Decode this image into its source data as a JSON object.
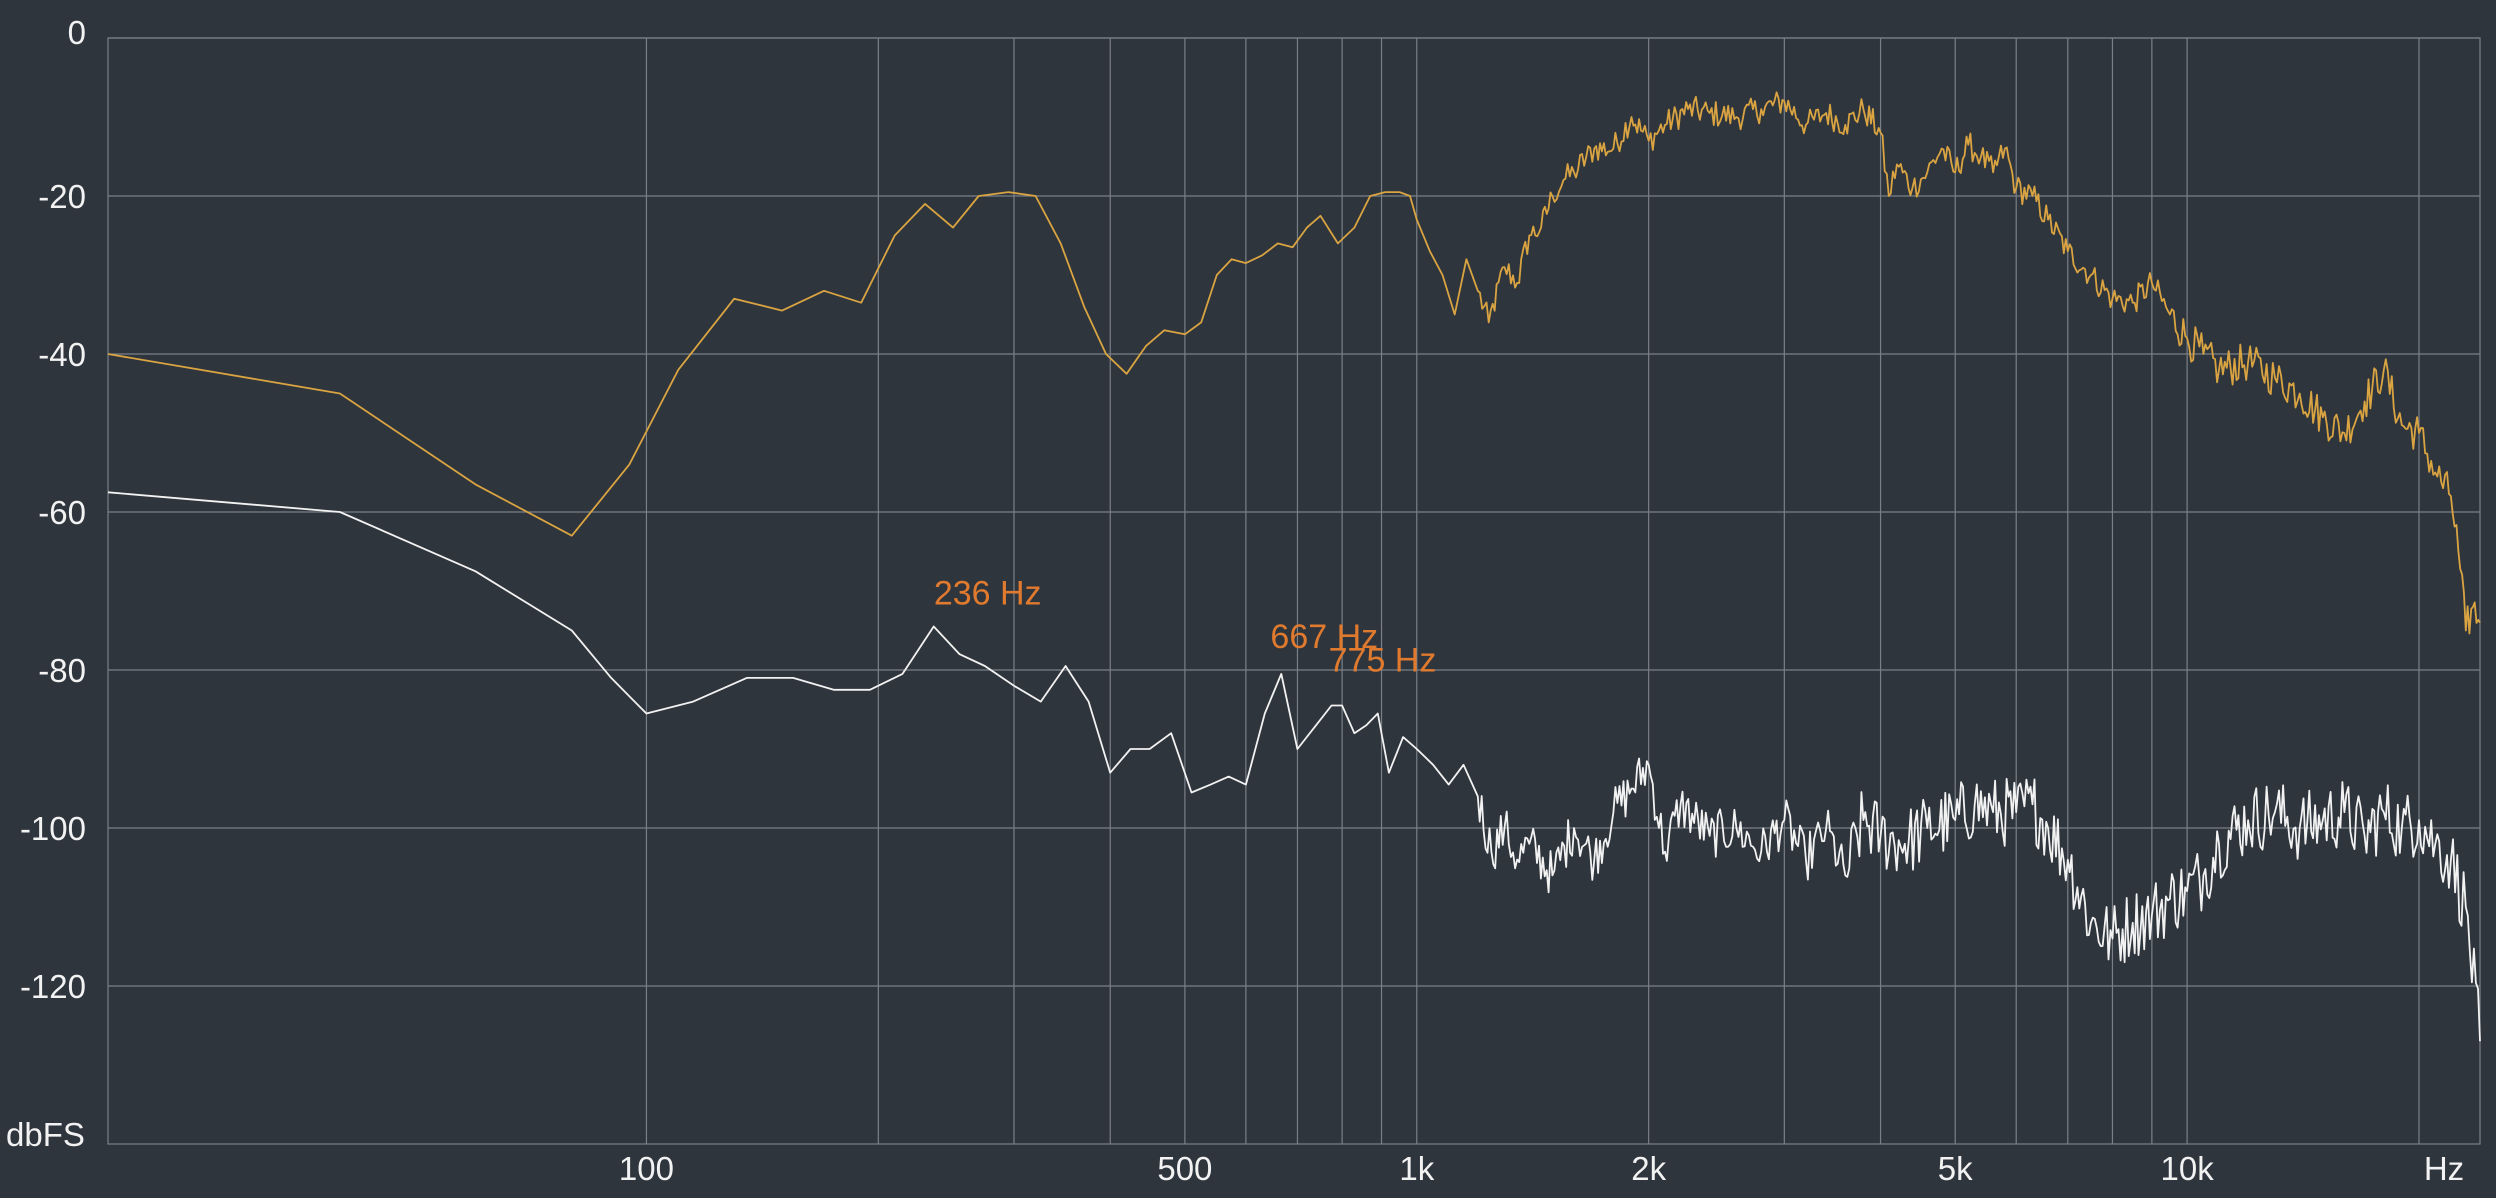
{
  "chart_data": {
    "type": "line",
    "title": "",
    "xlabel": "Hz",
    "ylabel": "dbFS",
    "x_scale": "log",
    "xlim": [
      20,
      24000
    ],
    "ylim": [
      -140,
      0
    ],
    "grid": true,
    "y_ticks": [
      {
        "value": 0,
        "label": "0"
      },
      {
        "value": -20,
        "label": "-20"
      },
      {
        "value": -40,
        "label": "-40"
      },
      {
        "value": -60,
        "label": "-60"
      },
      {
        "value": -80,
        "label": "-80"
      },
      {
        "value": -100,
        "label": "-100"
      },
      {
        "value": -120,
        "label": "-120"
      }
    ],
    "x_ticks": [
      {
        "value": 100,
        "label": "100"
      },
      {
        "value": 500,
        "label": "500"
      },
      {
        "value": 1000,
        "label": "1k"
      },
      {
        "value": 2000,
        "label": "2k"
      },
      {
        "value": 5000,
        "label": "5k"
      },
      {
        "value": 10000,
        "label": "10k"
      }
    ],
    "x_gridlines": [
      100,
      200,
      300,
      400,
      500,
      600,
      700,
      800,
      900,
      1000,
      2000,
      3000,
      4000,
      5000,
      6000,
      7000,
      8000,
      9000,
      10000,
      20000
    ],
    "colors": {
      "background": "#2f353d",
      "grid": "#7a8088",
      "series_1": "#d9a441",
      "series_2": "#f2f2f2",
      "peak_labels": "#e07a2e"
    },
    "series": [
      {
        "color": "#d9a441",
        "points": [
          [
            20,
            -40
          ],
          [
            40,
            -45
          ],
          [
            60,
            -56.5
          ],
          [
            80,
            -63
          ],
          [
            95,
            -54
          ],
          [
            110,
            -42
          ],
          [
            130,
            -33
          ],
          [
            150,
            -34.5
          ],
          [
            170,
            -32
          ],
          [
            190,
            -33.5
          ],
          [
            210,
            -25
          ],
          [
            230,
            -21
          ],
          [
            250,
            -24
          ],
          [
            270,
            -20
          ],
          [
            295,
            -19.5
          ],
          [
            320,
            -20
          ],
          [
            345,
            -26
          ],
          [
            370,
            -34
          ],
          [
            395,
            -40
          ],
          [
            420,
            -42.5
          ],
          [
            445,
            -39
          ],
          [
            470,
            -37
          ],
          [
            500,
            -37.5
          ],
          [
            525,
            -36
          ],
          [
            550,
            -30
          ],
          [
            575,
            -28
          ],
          [
            600,
            -28.5
          ],
          [
            630,
            -27.5
          ],
          [
            660,
            -26
          ],
          [
            690,
            -26.5
          ],
          [
            720,
            -24
          ],
          [
            750,
            -22.5
          ],
          [
            790,
            -26
          ],
          [
            830,
            -24
          ],
          [
            870,
            -20
          ],
          [
            910,
            -19.5
          ],
          [
            950,
            -19.5
          ],
          [
            980,
            -20
          ],
          [
            1000,
            -23
          ],
          [
            1040,
            -27
          ],
          [
            1080,
            -30
          ],
          [
            1120,
            -35
          ],
          [
            1160,
            -28
          ],
          [
            1200,
            -32
          ],
          [
            1240,
            -36
          ],
          [
            1300,
            -29
          ],
          [
            1350,
            -31
          ],
          [
            1400,
            -25
          ],
          [
            1450,
            -24
          ],
          [
            1500,
            -20
          ],
          [
            1550,
            -18
          ],
          [
            1600,
            -17
          ],
          [
            1700,
            -14
          ],
          [
            1800,
            -14
          ],
          [
            1900,
            -10
          ],
          [
            2000,
            -13
          ],
          [
            2100,
            -11
          ],
          [
            2250,
            -9
          ],
          [
            2400,
            -9.5
          ],
          [
            2600,
            -10
          ],
          [
            2800,
            -9
          ],
          [
            3000,
            -8
          ],
          [
            3200,
            -11
          ],
          [
            3400,
            -9.5
          ],
          [
            3600,
            -11
          ],
          [
            3800,
            -9
          ],
          [
            4000,
            -12
          ],
          [
            4100,
            -20
          ],
          [
            4200,
            -16
          ],
          [
            4400,
            -19
          ],
          [
            4600,
            -17
          ],
          [
            4800,
            -14
          ],
          [
            5000,
            -17
          ],
          [
            5200,
            -13.5
          ],
          [
            5400,
            -15
          ],
          [
            5600,
            -17
          ],
          [
            5800,
            -14
          ],
          [
            6000,
            -19
          ],
          [
            6300,
            -20
          ],
          [
            6600,
            -23
          ],
          [
            7000,
            -27
          ],
          [
            7500,
            -30
          ],
          [
            8000,
            -33
          ],
          [
            8500,
            -33.5
          ],
          [
            9000,
            -31
          ],
          [
            9500,
            -35
          ],
          [
            10000,
            -38
          ],
          [
            10500,
            -40
          ],
          [
            11000,
            -42
          ],
          [
            12000,
            -41
          ],
          [
            13000,
            -43
          ],
          [
            14000,
            -45
          ],
          [
            15000,
            -48
          ],
          [
            16000,
            -50
          ],
          [
            17000,
            -46
          ],
          [
            18000,
            -42
          ],
          [
            19000,
            -49
          ],
          [
            20000,
            -50
          ],
          [
            21000,
            -55
          ],
          [
            22000,
            -58
          ],
          [
            22500,
            -65
          ],
          [
            23000,
            -75
          ],
          [
            23500,
            -72
          ],
          [
            24000,
            -74
          ]
        ]
      },
      {
        "color": "#f2f2f2",
        "points": [
          [
            20,
            -57.5
          ],
          [
            40,
            -60
          ],
          [
            60,
            -67.5
          ],
          [
            80,
            -75
          ],
          [
            90,
            -81
          ],
          [
            100,
            -85.5
          ],
          [
            115,
            -84
          ],
          [
            135,
            -81
          ],
          [
            155,
            -81
          ],
          [
            175,
            -82.5
          ],
          [
            195,
            -82.5
          ],
          [
            215,
            -80.5
          ],
          [
            236,
            -74.5
          ],
          [
            255,
            -78
          ],
          [
            275,
            -79.5
          ],
          [
            300,
            -82
          ],
          [
            325,
            -84
          ],
          [
            350,
            -79.5
          ],
          [
            375,
            -84
          ],
          [
            400,
            -93
          ],
          [
            425,
            -90
          ],
          [
            450,
            -90
          ],
          [
            480,
            -88
          ],
          [
            510,
            -95.5
          ],
          [
            540,
            -94.5
          ],
          [
            570,
            -93.5
          ],
          [
            600,
            -94.5
          ],
          [
            635,
            -85.5
          ],
          [
            667,
            -80.5
          ],
          [
            700,
            -90
          ],
          [
            740,
            -87
          ],
          [
            775,
            -84.5
          ],
          [
            800,
            -84.5
          ],
          [
            830,
            -88
          ],
          [
            860,
            -87
          ],
          [
            890,
            -85.5
          ],
          [
            920,
            -93
          ],
          [
            960,
            -88.5
          ],
          [
            1000,
            -90
          ],
          [
            1050,
            -92
          ],
          [
            1100,
            -94.5
          ],
          [
            1150,
            -92
          ],
          [
            1200,
            -96
          ],
          [
            1250,
            -103
          ],
          [
            1300,
            -100
          ],
          [
            1350,
            -104
          ],
          [
            1400,
            -102
          ],
          [
            1500,
            -106
          ],
          [
            1600,
            -100
          ],
          [
            1700,
            -104
          ],
          [
            1800,
            -98
          ],
          [
            1900,
            -95
          ],
          [
            2000,
            -92
          ],
          [
            2100,
            -103
          ],
          [
            2200,
            -97
          ],
          [
            2400,
            -101
          ],
          [
            2600,
            -100
          ],
          [
            2800,
            -103
          ],
          [
            3000,
            -99
          ],
          [
            3200,
            -104
          ],
          [
            3400,
            -100
          ],
          [
            3600,
            -106
          ],
          [
            3800,
            -99
          ],
          [
            4000,
            -101
          ],
          [
            4300,
            -102
          ],
          [
            4600,
            -100
          ],
          [
            5000,
            -99
          ],
          [
            5300,
            -97
          ],
          [
            5600,
            -98
          ],
          [
            6000,
            -98
          ],
          [
            6300,
            -97
          ],
          [
            6600,
            -100
          ],
          [
            7000,
            -104
          ],
          [
            7500,
            -112
          ],
          [
            8000,
            -114
          ],
          [
            8500,
            -112
          ],
          [
            9000,
            -111
          ],
          [
            9500,
            -109
          ],
          [
            10000,
            -108
          ],
          [
            10500,
            -106
          ],
          [
            11000,
            -102
          ],
          [
            12000,
            -99
          ],
          [
            13000,
            -98
          ],
          [
            14000,
            -100
          ],
          [
            15000,
            -99
          ],
          [
            16000,
            -98
          ],
          [
            17000,
            -101
          ],
          [
            18000,
            -98
          ],
          [
            19000,
            -100
          ],
          [
            20000,
            -99
          ],
          [
            21000,
            -102
          ],
          [
            22000,
            -104
          ],
          [
            23000,
            -110
          ],
          [
            24000,
            -127
          ]
        ]
      }
    ],
    "annotations": [
      {
        "text": "236 Hz",
        "x": 236,
        "y": -74.5
      },
      {
        "text": "667 Hz",
        "x": 667,
        "y": -80.5
      },
      {
        "text": "775 Hz",
        "x": 775,
        "y": -84.5
      }
    ]
  }
}
